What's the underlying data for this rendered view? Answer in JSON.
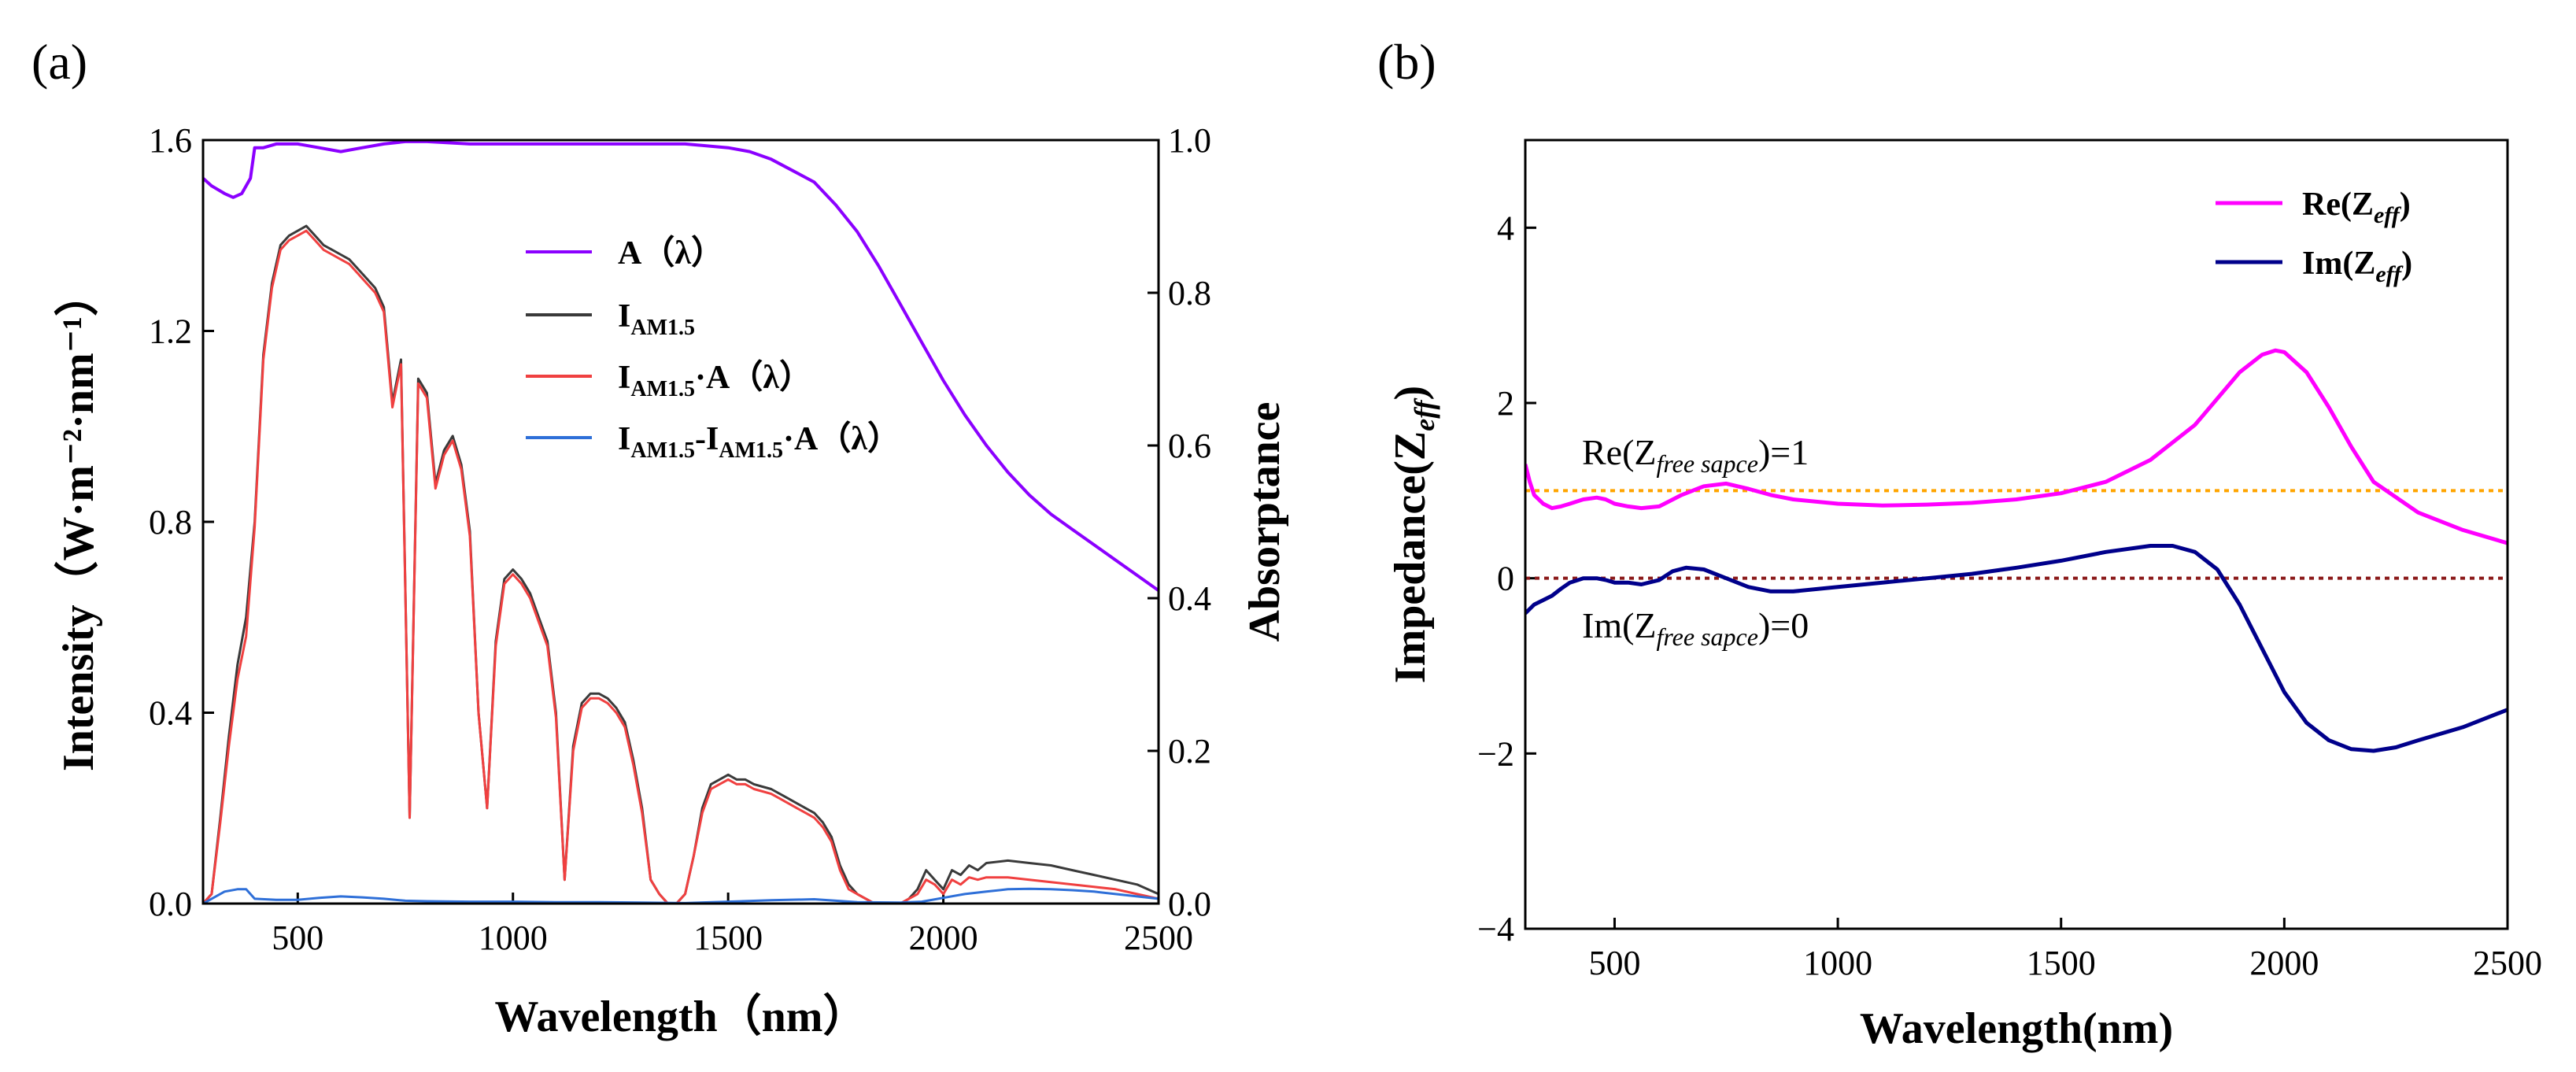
{
  "panels": {
    "a": {
      "label": "(a)"
    },
    "b": {
      "label": "(b)"
    }
  },
  "chart_data": [
    {
      "id": "a",
      "type": "line",
      "xlabel": "Wavelength（nm）",
      "ylabel": "Intensity（W·m⁻²·nm⁻¹）",
      "y2label": "Absorptance",
      "xlim": [
        280,
        2500
      ],
      "ylim": [
        0,
        1.6
      ],
      "y2lim": [
        0,
        1.0
      ],
      "xticks": [
        500,
        1000,
        1500,
        2000,
        2500
      ],
      "xtick_labels": [
        "500",
        "1000",
        "1500",
        "2000",
        "2500"
      ],
      "yticks": [
        0,
        0.4,
        0.8,
        1.2,
        1.6
      ],
      "ytick_labels": [
        "0.0",
        "0.4",
        "0.8",
        "1.2",
        "1.6"
      ],
      "y2ticks": [
        0,
        0.2,
        0.4,
        0.6,
        0.8,
        1.0
      ],
      "y2tick_labels": [
        "0.0",
        "0.2",
        "0.4",
        "0.6",
        "0.8",
        "1.0"
      ],
      "legend": {
        "position": "top-center",
        "entries": [
          "A（λ）",
          "I_AM1.5",
          "I_AM1.5·A（λ）",
          "I_AM1.5-I_AM1.5·A（λ）"
        ],
        "entries_text": {
          "a_lambda": {
            "main": "A（λ）"
          },
          "i_am": {
            "main": "I",
            "sub": "AM1.5"
          },
          "i_am_a": {
            "main": "I",
            "sub": "AM1.5",
            "tail": "·A（λ）"
          },
          "diff": {
            "main": "I",
            "sub": "AM1.5",
            "mid": "-I",
            "sub2": "AM1.5",
            "tail": "·A（λ）"
          }
        }
      },
      "series": [
        {
          "name": "A（λ）",
          "axis": "right",
          "color": "#8B00FF",
          "x": [
            280,
            300,
            330,
            350,
            370,
            390,
            400,
            420,
            450,
            500,
            550,
            600,
            650,
            700,
            750,
            800,
            900,
            1000,
            1100,
            1200,
            1300,
            1400,
            1500,
            1550,
            1600,
            1650,
            1700,
            1750,
            1800,
            1850,
            1900,
            1950,
            2000,
            2050,
            2100,
            2150,
            2200,
            2250,
            2300,
            2350,
            2400,
            2450,
            2500
          ],
          "y": [
            0.95,
            0.94,
            0.93,
            0.925,
            0.93,
            0.95,
            0.99,
            0.99,
            0.995,
            0.995,
            0.99,
            0.985,
            0.99,
            0.995,
            0.998,
            0.998,
            0.995,
            0.995,
            0.995,
            0.995,
            0.995,
            0.995,
            0.99,
            0.985,
            0.975,
            0.96,
            0.945,
            0.915,
            0.88,
            0.835,
            0.785,
            0.735,
            0.685,
            0.64,
            0.6,
            0.565,
            0.535,
            0.51,
            0.49,
            0.47,
            0.45,
            0.43,
            0.41
          ]
        },
        {
          "name": "I_AM1.5",
          "axis": "left",
          "color": "#3a3a3a",
          "x": [
            280,
            300,
            320,
            340,
            360,
            380,
            400,
            420,
            440,
            460,
            480,
            500,
            520,
            540,
            560,
            580,
            600,
            620,
            640,
            660,
            680,
            700,
            720,
            740,
            760,
            780,
            800,
            820,
            840,
            860,
            880,
            900,
            920,
            940,
            960,
            980,
            1000,
            1020,
            1040,
            1060,
            1080,
            1100,
            1120,
            1140,
            1160,
            1180,
            1200,
            1220,
            1240,
            1260,
            1280,
            1300,
            1320,
            1340,
            1360,
            1380,
            1400,
            1420,
            1440,
            1460,
            1480,
            1500,
            1520,
            1540,
            1560,
            1580,
            1600,
            1620,
            1640,
            1660,
            1680,
            1700,
            1720,
            1740,
            1760,
            1780,
            1800,
            1820,
            1840,
            1860,
            1880,
            1900,
            1920,
            1940,
            1960,
            1980,
            2000,
            2020,
            2040,
            2060,
            2080,
            2100,
            2150,
            2200,
            2250,
            2300,
            2350,
            2400,
            2450,
            2500
          ],
          "y": [
            0,
            0.02,
            0.18,
            0.35,
            0.5,
            0.6,
            0.8,
            1.15,
            1.3,
            1.38,
            1.4,
            1.41,
            1.42,
            1.4,
            1.38,
            1.37,
            1.36,
            1.35,
            1.33,
            1.31,
            1.29,
            1.25,
            1.05,
            1.14,
            0.18,
            1.1,
            1.07,
            0.88,
            0.95,
            0.98,
            0.92,
            0.78,
            0.4,
            0.2,
            0.55,
            0.68,
            0.7,
            0.68,
            0.65,
            0.6,
            0.55,
            0.4,
            0.05,
            0.33,
            0.42,
            0.44,
            0.44,
            0.43,
            0.41,
            0.38,
            0.3,
            0.2,
            0.05,
            0.02,
            0,
            0,
            0.02,
            0.1,
            0.2,
            0.25,
            0.26,
            0.27,
            0.26,
            0.26,
            0.25,
            0.245,
            0.24,
            0.23,
            0.22,
            0.21,
            0.2,
            0.19,
            0.17,
            0.14,
            0.08,
            0.04,
            0.02,
            0.01,
            0,
            0,
            0,
            0,
            0.01,
            0.03,
            0.07,
            0.05,
            0.03,
            0.07,
            0.06,
            0.08,
            0.07,
            0.085,
            0.09,
            0.085,
            0.08,
            0.07,
            0.06,
            0.05,
            0.04,
            0.02
          ]
        },
        {
          "name": "I_AM1.5·A（λ）",
          "axis": "left",
          "color": "#F04040",
          "x": [
            280,
            300,
            320,
            340,
            360,
            380,
            400,
            420,
            440,
            460,
            480,
            500,
            520,
            540,
            560,
            580,
            600,
            620,
            640,
            660,
            680,
            700,
            720,
            740,
            760,
            780,
            800,
            820,
            840,
            860,
            880,
            900,
            920,
            940,
            960,
            980,
            1000,
            1020,
            1040,
            1060,
            1080,
            1100,
            1120,
            1140,
            1160,
            1180,
            1200,
            1220,
            1240,
            1260,
            1280,
            1300,
            1320,
            1340,
            1360,
            1380,
            1400,
            1420,
            1440,
            1460,
            1480,
            1500,
            1520,
            1540,
            1560,
            1580,
            1600,
            1620,
            1640,
            1660,
            1680,
            1700,
            1720,
            1740,
            1760,
            1780,
            1800,
            1820,
            1840,
            1860,
            1880,
            1900,
            1920,
            1940,
            1960,
            1980,
            2000,
            2020,
            2040,
            2060,
            2080,
            2100,
            2150,
            2200,
            2250,
            2300,
            2350,
            2400,
            2450,
            2500
          ],
          "y": [
            0,
            0.02,
            0.17,
            0.33,
            0.47,
            0.56,
            0.79,
            1.14,
            1.29,
            1.37,
            1.39,
            1.4,
            1.41,
            1.39,
            1.37,
            1.36,
            1.35,
            1.34,
            1.32,
            1.3,
            1.28,
            1.24,
            1.04,
            1.13,
            0.18,
            1.09,
            1.06,
            0.87,
            0.94,
            0.97,
            0.91,
            0.77,
            0.4,
            0.2,
            0.54,
            0.67,
            0.69,
            0.67,
            0.64,
            0.59,
            0.54,
            0.39,
            0.05,
            0.32,
            0.41,
            0.43,
            0.43,
            0.42,
            0.4,
            0.37,
            0.29,
            0.19,
            0.05,
            0.02,
            0,
            0,
            0.02,
            0.1,
            0.19,
            0.24,
            0.25,
            0.26,
            0.25,
            0.25,
            0.24,
            0.235,
            0.23,
            0.22,
            0.21,
            0.2,
            0.19,
            0.18,
            0.16,
            0.13,
            0.07,
            0.03,
            0.02,
            0.01,
            0,
            0,
            0,
            0,
            0.01,
            0.02,
            0.05,
            0.04,
            0.02,
            0.05,
            0.04,
            0.055,
            0.05,
            0.055,
            0.055,
            0.05,
            0.045,
            0.04,
            0.035,
            0.03,
            0.02,
            0.01
          ]
        },
        {
          "name": "I_AM1.5-I_AM1.5·A（λ）",
          "axis": "left",
          "color": "#2E6FD8",
          "x": [
            280,
            300,
            330,
            360,
            380,
            400,
            450,
            500,
            550,
            600,
            650,
            700,
            750,
            800,
            900,
            1000,
            1100,
            1200,
            1300,
            1400,
            1500,
            1600,
            1700,
            1800,
            1900,
            1950,
            2000,
            2050,
            2100,
            2150,
            2200,
            2250,
            2300,
            2350,
            2400,
            2450,
            2500
          ],
          "y": [
            0,
            0.01,
            0.025,
            0.03,
            0.03,
            0.01,
            0.008,
            0.008,
            0.012,
            0.015,
            0.013,
            0.01,
            0.006,
            0.005,
            0.004,
            0.004,
            0.003,
            0.003,
            0.002,
            0.001,
            0.004,
            0.007,
            0.009,
            0.003,
            0.002,
            0.004,
            0.012,
            0.02,
            0.025,
            0.03,
            0.031,
            0.03,
            0.028,
            0.025,
            0.02,
            0.015,
            0.01
          ]
        }
      ]
    },
    {
      "id": "b",
      "type": "line",
      "xlabel": "Wavelength(nm)",
      "ylabel": "Impedance(Z_eff)",
      "xlim": [
        300,
        2500
      ],
      "ylim": [
        -4,
        5
      ],
      "xticks": [
        500,
        1000,
        1500,
        2000,
        2500
      ],
      "xtick_labels": [
        "500",
        "1000",
        "1500",
        "2000",
        "2500"
      ],
      "yticks": [
        -4,
        -2,
        0,
        2,
        4
      ],
      "ytick_labels": [
        "−4",
        "−2",
        "0",
        "2",
        "4"
      ],
      "legend": {
        "position": "top-right",
        "entries": [
          "Re(Z_eff)",
          "Im(Z_eff)"
        ],
        "entries_text": {
          "re": {
            "main": "Re(Z",
            "sub": "eff",
            "tail": ")"
          },
          "im": {
            "main": "Im(Z",
            "sub": "eff",
            "tail": ")"
          }
        }
      },
      "reference_lines": [
        {
          "name": "Re(Z_free sapce)=1",
          "y": 1,
          "color": "#FFA500",
          "style": "dotted"
        },
        {
          "name": "Im(Z_free sapce)=0",
          "y": 0,
          "color": "#8B1A1A",
          "style": "dotted"
        }
      ],
      "annotations": {
        "re_ref": {
          "main": "Re(Z",
          "sub": "free sapce",
          "tail": ")=1"
        },
        "im_ref": {
          "main": "Im(Z",
          "sub": "free sapce",
          "tail": ")=0"
        }
      },
      "series": [
        {
          "name": "Re(Z_eff)",
          "color": "#FF00FF",
          "x": [
            300,
            310,
            320,
            340,
            360,
            380,
            400,
            430,
            460,
            480,
            500,
            530,
            560,
            600,
            650,
            700,
            750,
            800,
            850,
            900,
            1000,
            1100,
            1200,
            1300,
            1400,
            1500,
            1600,
            1700,
            1800,
            1850,
            1900,
            1950,
            1980,
            2000,
            2050,
            2100,
            2150,
            2200,
            2300,
            2400,
            2500
          ],
          "y": [
            1.3,
            1.1,
            0.95,
            0.85,
            0.8,
            0.82,
            0.85,
            0.9,
            0.92,
            0.9,
            0.85,
            0.82,
            0.8,
            0.82,
            0.95,
            1.05,
            1.08,
            1.02,
            0.95,
            0.9,
            0.85,
            0.83,
            0.84,
            0.86,
            0.9,
            0.97,
            1.1,
            1.35,
            1.75,
            2.05,
            2.35,
            2.55,
            2.6,
            2.58,
            2.35,
            1.95,
            1.5,
            1.1,
            0.75,
            0.55,
            0.4
          ]
        },
        {
          "name": "Im(Z_eff)",
          "color": "#00008B",
          "x": [
            300,
            310,
            320,
            340,
            360,
            380,
            400,
            430,
            460,
            480,
            500,
            530,
            560,
            600,
            630,
            660,
            700,
            750,
            800,
            850,
            900,
            1000,
            1100,
            1200,
            1300,
            1400,
            1500,
            1600,
            1700,
            1750,
            1800,
            1850,
            1900,
            1950,
            2000,
            2050,
            2100,
            2150,
            2200,
            2250,
            2300,
            2400,
            2500
          ],
          "y": [
            -0.4,
            -0.35,
            -0.3,
            -0.25,
            -0.2,
            -0.12,
            -0.05,
            0.0,
            0.0,
            -0.02,
            -0.05,
            -0.05,
            -0.07,
            -0.02,
            0.08,
            0.12,
            0.1,
            0.0,
            -0.1,
            -0.15,
            -0.15,
            -0.1,
            -0.05,
            0.0,
            0.05,
            0.12,
            0.2,
            0.3,
            0.37,
            0.37,
            0.3,
            0.1,
            -0.3,
            -0.8,
            -1.3,
            -1.65,
            -1.85,
            -1.95,
            -1.97,
            -1.93,
            -1.85,
            -1.7,
            -1.5
          ]
        }
      ]
    }
  ]
}
